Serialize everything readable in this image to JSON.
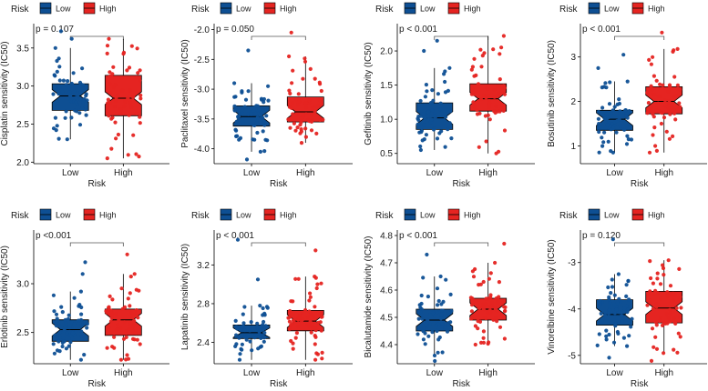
{
  "legend": {
    "title": "Risk",
    "low_label": "Low",
    "high_label": "High"
  },
  "colors": {
    "low": "#0e4f93",
    "high": "#e52421",
    "median": "#000000",
    "axis": "#000000"
  },
  "chart_data": [
    {
      "type": "box",
      "ylabel": "Cisplatin sensitivity (IC50)",
      "xlabel": "Risk",
      "categories": [
        "Low",
        "High"
      ],
      "p_label": "p = 0.107",
      "ylim": [
        1.98,
        3.82
      ],
      "ticks": [
        2.0,
        2.5,
        3.0,
        3.5
      ],
      "tick_labels": [
        "2.0",
        "2.5",
        "3.0",
        "3.5"
      ],
      "boxes": [
        {
          "name": "Low",
          "min": 2.3,
          "q1": 2.68,
          "median": 2.87,
          "q3": 3.03,
          "max": 3.5,
          "outliers": [
            3.72,
            3.62
          ]
        },
        {
          "name": "High",
          "min": 2.05,
          "q1": 2.61,
          "median": 2.84,
          "q3": 3.14,
          "max": 3.62,
          "outliers": []
        }
      ]
    },
    {
      "type": "box",
      "ylabel": "Paclitaxel sensitivity (IC50)",
      "xlabel": "Risk",
      "categories": [
        "Low",
        "High"
      ],
      "p_label": "p = 0.050",
      "ylim": [
        -4.25,
        -1.9
      ],
      "ticks": [
        -4.0,
        -3.5,
        -3.0,
        -2.5,
        -2.0
      ],
      "tick_labels": [
        "-4.0",
        "-3.5",
        "-3.0",
        "-2.5",
        "-2.0"
      ],
      "boxes": [
        {
          "name": "Low",
          "min": -4.05,
          "q1": -3.62,
          "median": -3.46,
          "q3": -3.28,
          "max": -2.9,
          "outliers": [
            -2.35,
            -4.18
          ]
        },
        {
          "name": "High",
          "min": -3.9,
          "q1": -3.55,
          "median": -3.38,
          "q3": -3.13,
          "max": -2.45,
          "outliers": [
            -2.05
          ]
        }
      ]
    },
    {
      "type": "box",
      "ylabel": "Gefitinib sensitivity (IC50)",
      "xlabel": "Risk",
      "categories": [
        "Low",
        "High"
      ],
      "p_label": "p < 0.001",
      "ylim": [
        0.35,
        2.4
      ],
      "ticks": [
        0.5,
        1.0,
        1.5,
        2.0
      ],
      "tick_labels": [
        "0.5",
        "1.0",
        "1.5",
        "2.0"
      ],
      "boxes": [
        {
          "name": "Low",
          "min": 0.55,
          "q1": 0.85,
          "median": 1.02,
          "q3": 1.24,
          "max": 1.75,
          "outliers": [
            2.15,
            2.0
          ]
        },
        {
          "name": "High",
          "min": 0.5,
          "q1": 1.12,
          "median": 1.3,
          "q3": 1.52,
          "max": 2.22,
          "outliers": []
        }
      ]
    },
    {
      "type": "box",
      "ylabel": "Bosutinib sensitivity (IC50)",
      "xlabel": "Risk",
      "categories": [
        "Low",
        "High"
      ],
      "p_label": "p < 0.001",
      "ylim": [
        0.6,
        3.75
      ],
      "ticks": [
        1,
        2,
        3
      ],
      "tick_labels": [
        "1",
        "2",
        "3"
      ],
      "boxes": [
        {
          "name": "Low",
          "min": 0.85,
          "q1": 1.35,
          "median": 1.6,
          "q3": 1.8,
          "max": 2.45,
          "outliers": [
            3.05,
            2.75
          ]
        },
        {
          "name": "High",
          "min": 0.85,
          "q1": 1.72,
          "median": 2.0,
          "q3": 2.33,
          "max": 3.18,
          "outliers": [
            3.55
          ]
        }
      ]
    },
    {
      "type": "box",
      "ylabel": "Erlotinib sensitivity (IC50)",
      "xlabel": "Risk",
      "categories": [
        "Low",
        "High"
      ],
      "p_label": "p <0.001",
      "ylim": [
        2.18,
        3.55
      ],
      "ticks": [
        2.5,
        3.0
      ],
      "tick_labels": [
        "2.5",
        "3.0"
      ],
      "boxes": [
        {
          "name": "Low",
          "min": 2.22,
          "q1": 2.41,
          "median": 2.53,
          "q3": 2.63,
          "max": 2.92,
          "outliers": [
            3.22,
            3.1
          ]
        },
        {
          "name": "High",
          "min": 2.22,
          "q1": 2.47,
          "median": 2.63,
          "q3": 2.74,
          "max": 3.1,
          "outliers": [
            3.3
          ]
        }
      ]
    },
    {
      "type": "box",
      "ylabel": "Lapatinib sensitivity (IC50)",
      "xlabel": "Risk",
      "categories": [
        "Low",
        "High"
      ],
      "p_label": "p < 0.001",
      "ylim": [
        2.18,
        3.56
      ],
      "ticks": [
        2.4,
        2.8,
        3.2
      ],
      "tick_labels": [
        "2.4",
        "2.8",
        "3.2"
      ],
      "boxes": [
        {
          "name": "Low",
          "min": 2.22,
          "q1": 2.44,
          "median": 2.5,
          "q3": 2.58,
          "max": 2.78,
          "outliers": [
            3.46,
            3.05
          ]
        },
        {
          "name": "High",
          "min": 2.22,
          "q1": 2.52,
          "median": 2.62,
          "q3": 2.73,
          "max": 3.08,
          "outliers": [
            3.35
          ]
        }
      ]
    },
    {
      "type": "box",
      "ylabel": "Bicalutamide sensitivity (IC50)",
      "xlabel": "Risk",
      "categories": [
        "Low",
        "High"
      ],
      "p_label": "p < 0.001",
      "ylim": [
        4.33,
        4.82
      ],
      "ticks": [
        4.4,
        4.5,
        4.6,
        4.7,
        4.8
      ],
      "tick_labels": [
        "4.4",
        "4.5",
        "4.6",
        "4.7",
        "4.8"
      ],
      "boxes": [
        {
          "name": "Low",
          "min": 4.36,
          "q1": 4.45,
          "median": 4.49,
          "q3": 4.53,
          "max": 4.65,
          "outliers": [
            4.73,
            4.34
          ]
        },
        {
          "name": "High",
          "min": 4.4,
          "q1": 4.49,
          "median": 4.53,
          "q3": 4.57,
          "max": 4.7,
          "outliers": [
            4.77
          ]
        }
      ]
    },
    {
      "type": "box",
      "ylabel": "Vinorelbine sensitivity (IC50)",
      "xlabel": "Risk",
      "categories": [
        "Low",
        "High"
      ],
      "p_label": "p = 0.120",
      "ylim": [
        -5.18,
        -2.3
      ],
      "ticks": [
        -5,
        -4,
        -3
      ],
      "tick_labels": [
        "-5",
        "-4",
        "-3"
      ],
      "boxes": [
        {
          "name": "Low",
          "min": -4.8,
          "q1": -4.35,
          "median": -4.12,
          "q3": -3.8,
          "max": -3.25,
          "outliers": [
            -2.5,
            -5.05
          ]
        },
        {
          "name": "High",
          "min": -4.95,
          "q1": -4.3,
          "median": -3.98,
          "q3": -3.62,
          "max": -2.95,
          "outliers": [
            -5.12
          ]
        }
      ]
    }
  ]
}
